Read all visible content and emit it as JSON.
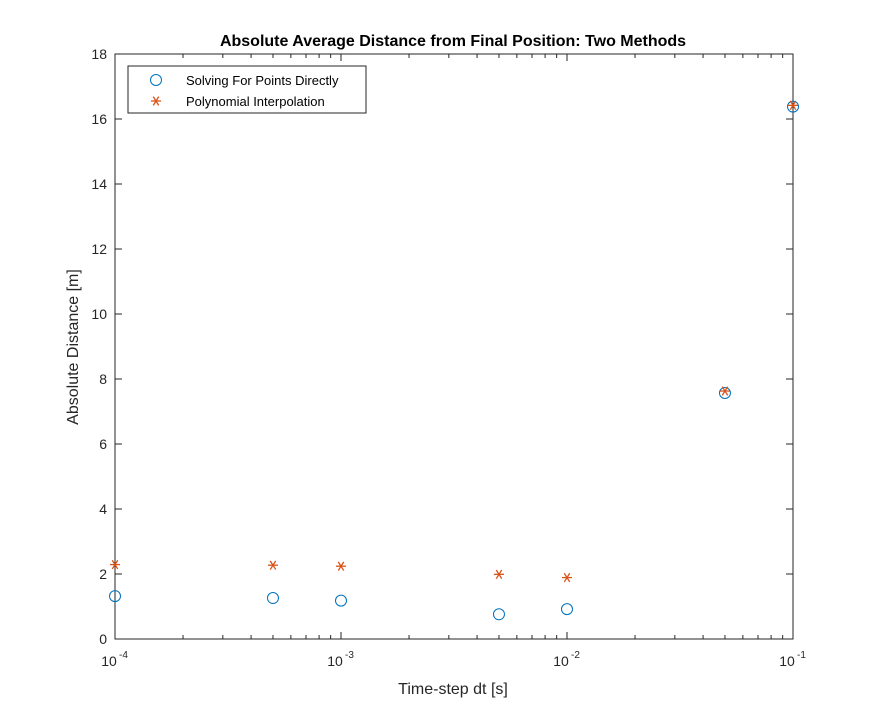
{
  "chart_data": {
    "type": "scatter",
    "title": "Absolute Average Distance from Final Position: Two Methods",
    "xlabel": "Time-step dt [s]",
    "ylabel": "Absolute Distance [m]",
    "xscale": "log",
    "xlim": [
      0.0001,
      0.1
    ],
    "ylim": [
      0,
      18
    ],
    "xticks": [
      0.0001,
      0.001,
      0.01,
      0.1
    ],
    "xtick_labels": [
      {
        "base": "10",
        "exp": "-4"
      },
      {
        "base": "10",
        "exp": "-3"
      },
      {
        "base": "10",
        "exp": "-2"
      },
      {
        "base": "10",
        "exp": "-1"
      }
    ],
    "yticks": [
      0,
      2,
      4,
      6,
      8,
      10,
      12,
      14,
      16,
      18
    ],
    "ytick_labels": [
      "0",
      "2",
      "4",
      "6",
      "8",
      "10",
      "12",
      "14",
      "16",
      "18"
    ],
    "grid": false,
    "legend_position": "top-left",
    "series": [
      {
        "name": "Solving For Points Directly",
        "marker": "circle",
        "color": "#0072BD",
        "x": [
          0.0001,
          0.0005,
          0.001,
          0.005,
          0.01,
          0.05,
          0.1
        ],
        "y": [
          1.32,
          1.26,
          1.18,
          0.76,
          0.92,
          7.57,
          16.38
        ]
      },
      {
        "name": "Polynomial Interpolation",
        "marker": "asterisk",
        "color": "#D95319",
        "x": [
          0.0001,
          0.0005,
          0.001,
          0.005,
          0.01,
          0.05,
          0.1
        ],
        "y": [
          2.29,
          2.27,
          2.24,
          1.99,
          1.89,
          7.63,
          16.42
        ]
      }
    ]
  }
}
